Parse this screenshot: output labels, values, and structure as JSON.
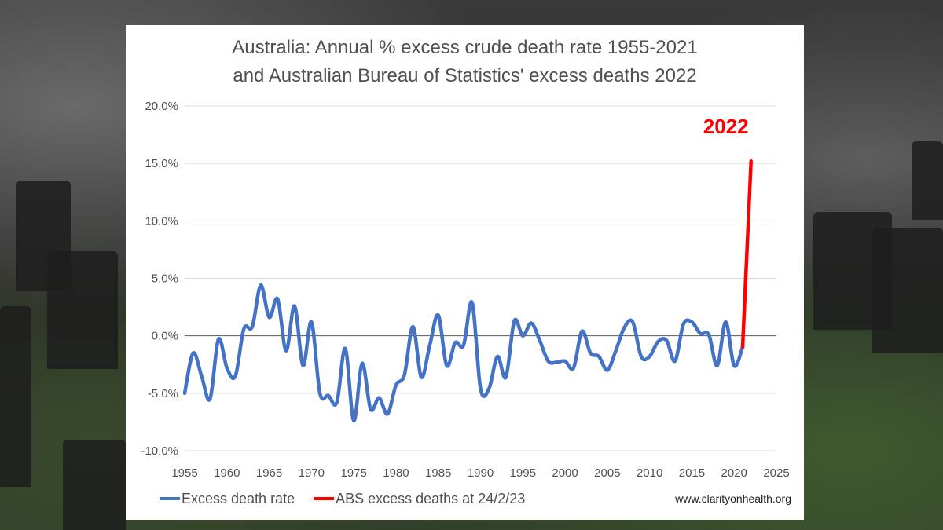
{
  "colors": {
    "excess_rate": "#4472c4",
    "abs_2022": "#ff0000",
    "grid": "#d9d9d9",
    "zero_line": "#595959",
    "text": "#505050"
  },
  "chart_data": {
    "type": "line",
    "title_line1": "Australia: Annual % excess crude death rate 1955-2021",
    "title_line2": "and Australian Bureau of Statistics' excess deaths 2022",
    "xlim": [
      1955,
      2025
    ],
    "ylim": [
      -10,
      20
    ],
    "x_ticks": [
      "1955",
      "1960",
      "1965",
      "1970",
      "1975",
      "1980",
      "1985",
      "1990",
      "1995",
      "2000",
      "2005",
      "2010",
      "2015",
      "2020",
      "2025"
    ],
    "x_tick_values": [
      1955,
      1960,
      1965,
      1970,
      1975,
      1980,
      1985,
      1990,
      1995,
      2000,
      2005,
      2010,
      2015,
      2020,
      2025
    ],
    "y_ticks": [
      "-10.0%",
      "-5.0%",
      "0.0%",
      "5.0%",
      "10.0%",
      "15.0%",
      "20.0%"
    ],
    "y_tick_values": [
      -10,
      -5,
      0,
      5,
      10,
      15,
      20
    ],
    "grid": "horizontal",
    "legend_position": "bottom",
    "annotation": "2022",
    "credit": "www.clarityonhealth.org",
    "series": [
      {
        "name": "Excess death rate",
        "x": [
          1955,
          1956,
          1957,
          1958,
          1959,
          1960,
          1961,
          1962,
          1963,
          1964,
          1965,
          1966,
          1967,
          1968,
          1969,
          1970,
          1971,
          1972,
          1973,
          1974,
          1975,
          1976,
          1977,
          1978,
          1979,
          1980,
          1981,
          1982,
          1983,
          1984,
          1985,
          1986,
          1987,
          1988,
          1989,
          1990,
          1991,
          1992,
          1993,
          1994,
          1995,
          1996,
          1997,
          1998,
          1999,
          2000,
          2001,
          2002,
          2003,
          2004,
          2005,
          2006,
          2007,
          2008,
          2009,
          2010,
          2011,
          2012,
          2013,
          2014,
          2015,
          2016,
          2017,
          2018,
          2019,
          2020,
          2021
        ],
        "values": [
          -5.0,
          -1.5,
          -3.5,
          -5.5,
          -0.3,
          -2.8,
          -3.5,
          0.6,
          0.8,
          4.4,
          1.6,
          3.2,
          -1.3,
          2.6,
          -2.6,
          1.2,
          -5.0,
          -5.2,
          -5.8,
          -1.1,
          -7.4,
          -2.4,
          -6.4,
          -5.4,
          -6.8,
          -4.3,
          -3.4,
          0.8,
          -3.6,
          -0.8,
          1.8,
          -2.6,
          -0.6,
          -0.8,
          2.9,
          -4.6,
          -4.6,
          -1.8,
          -3.6,
          1.3,
          0.0,
          1.1,
          -0.4,
          -2.2,
          -2.3,
          -2.2,
          -2.8,
          0.4,
          -1.5,
          -1.8,
          -3.0,
          -1.3,
          0.7,
          1.2,
          -1.8,
          -1.8,
          -0.5,
          -0.4,
          -2.2,
          1.0,
          1.2,
          0.2,
          0.1,
          -2.6,
          1.2,
          -2.6,
          -1.0
        ]
      },
      {
        "name": "ABS excess deaths at 24/2/23",
        "x": [
          2021,
          2022
        ],
        "values": [
          -1.0,
          15.2
        ]
      }
    ]
  }
}
